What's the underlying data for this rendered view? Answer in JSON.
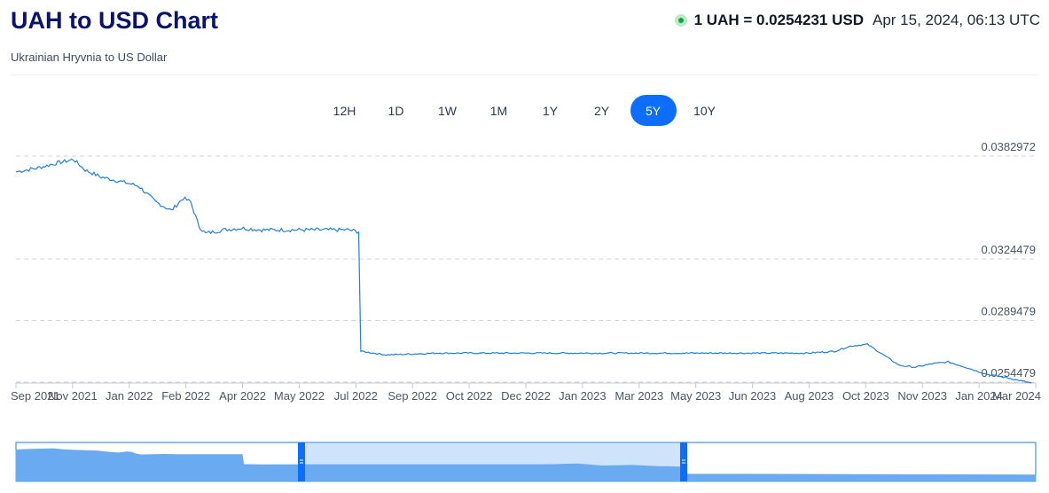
{
  "header": {
    "title": "UAH to USD Chart",
    "subtitle": "Ukrainian Hryvnia to US Dollar",
    "rate": "1 UAH = 0.0254231 USD",
    "timestamp": "Apr 15, 2024, 06:13 UTC",
    "live_color": "#16a34a"
  },
  "range_buttons": [
    {
      "label": "12H",
      "active": false
    },
    {
      "label": "1D",
      "active": false
    },
    {
      "label": "1W",
      "active": false
    },
    {
      "label": "1M",
      "active": false
    },
    {
      "label": "1Y",
      "active": false
    },
    {
      "label": "2Y",
      "active": false
    },
    {
      "label": "5Y",
      "active": true
    },
    {
      "label": "10Y",
      "active": false
    }
  ],
  "colors": {
    "line": "#1f7fe0",
    "accent": "#0d6efd",
    "navigator_fill": "#6aaaf0",
    "navigator_selected": "#cfe3fb"
  },
  "chart_data": {
    "type": "line",
    "y_ticks": [
      "0.0382972",
      "0.0324479",
      "0.0289479",
      "0.0254479"
    ],
    "ylim": [
      0.0254,
      0.0391
    ],
    "x_labels": [
      "Sep 2021",
      "Nov 2021",
      "Jan 2022",
      "Feb 2022",
      "Apr 2022",
      "May 2022",
      "Jul 2022",
      "Sep 2022",
      "Oct 2022",
      "Dec 2022",
      "Jan 2023",
      "Mar 2023",
      "May 2023",
      "Jun 2023",
      "Aug 2023",
      "Oct 2023",
      "Nov 2023",
      "Jan 2024",
      "Mar 2024"
    ],
    "x_range": [
      "2021-09",
      "2024-04"
    ],
    "grid": "horizontal dashed",
    "series": [
      {
        "x": [
          "2021-09-01",
          "2021-09-20",
          "2021-10-10",
          "2021-10-25",
          "2021-11-05",
          "2021-11-20",
          "2021-12-05",
          "2021-12-25",
          "2022-01-10",
          "2022-01-25",
          "2022-02-05",
          "2022-02-12",
          "2022-02-20",
          "2022-02-26",
          "2022-03-15",
          "2022-04-01",
          "2022-04-20",
          "2022-05-10",
          "2022-05-30",
          "2022-06-20",
          "2022-07-10",
          "2022-07-20",
          "2022-07-22",
          "2022-08-15",
          "2022-10-01",
          "2022-12-01",
          "2023-02-01",
          "2023-04-01",
          "2023-06-01",
          "2023-08-01",
          "2023-09-15",
          "2023-10-10",
          "2023-10-25",
          "2023-11-10",
          "2023-11-25",
          "2023-12-10",
          "2023-12-25",
          "2024-01-10",
          "2024-01-25",
          "2024-02-10",
          "2024-03-01",
          "2024-03-20",
          "2024-04-12"
        ],
        "y": [
          0.0374,
          0.0376,
          0.0379,
          0.0381,
          0.0375,
          0.0371,
          0.0369,
          0.0366,
          0.0357,
          0.0352,
          0.0359,
          0.0357,
          0.0343,
          0.0339,
          0.0341,
          0.0342,
          0.0341,
          0.0341,
          0.0341,
          0.0341,
          0.0341,
          0.034,
          0.0272,
          0.027,
          0.0271,
          0.0271,
          0.0271,
          0.0271,
          0.0271,
          0.0271,
          0.0271,
          0.0272,
          0.0275,
          0.0276,
          0.027,
          0.0264,
          0.0263,
          0.0265,
          0.0266,
          0.0263,
          0.0259,
          0.0257,
          0.0254
        ]
      }
    ],
    "navigator": {
      "selection_start": "2021-09",
      "selection_end": "2024-04"
    }
  }
}
